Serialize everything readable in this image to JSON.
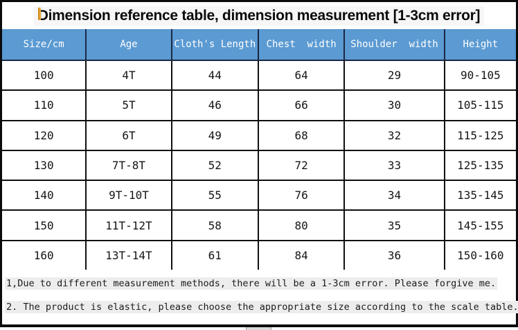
{
  "title": "Dimension reference table, dimension measurement [1-3cm error]",
  "table": {
    "columns": [
      "Size/cm",
      "Age",
      "Cloth's Length",
      "Chest  width",
      "Shoulder  width",
      "Height"
    ],
    "rows": [
      [
        "100",
        "4T",
        "44",
        "64",
        "29",
        "90-105"
      ],
      [
        "110",
        "5T",
        "46",
        "66",
        "30",
        "105-115"
      ],
      [
        "120",
        "6T",
        "49",
        "68",
        "32",
        "115-125"
      ],
      [
        "130",
        "7T-8T",
        "52",
        "72",
        "33",
        "125-135"
      ],
      [
        "140",
        "9T-10T",
        "55",
        "76",
        "34",
        "135-145"
      ],
      [
        "150",
        "11T-12T",
        "58",
        "80",
        "35",
        "145-155"
      ],
      [
        "160",
        "13T-14T",
        "61",
        "84",
        "36",
        "150-160"
      ]
    ]
  },
  "notes": [
    "1,Due to different measurement methods, there will be a 1-3cm error. Please forgive me.",
    "2. The product is elastic, please choose the appropriate size according to the scale table."
  ],
  "colors": {
    "header_bg": "#5b9ad2",
    "header_text": "#ffffff",
    "header_divider": "#1c2742",
    "cell_border": "#0f0f0f",
    "frame_border": "#0b0b0b",
    "note_highlight": "#ededed",
    "title_highlight": "#f6f6f6",
    "accent_sliver": "#f3c04a"
  }
}
